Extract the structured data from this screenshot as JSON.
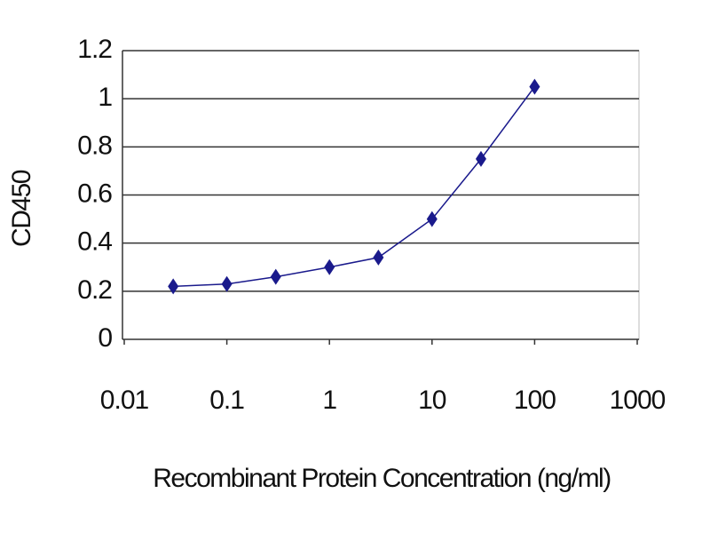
{
  "chart_data": {
    "type": "line",
    "x": [
      0.03,
      0.1,
      0.3,
      1,
      3,
      10,
      30,
      100
    ],
    "series": [
      {
        "name": "CD450",
        "color": "#1a1a8c",
        "values": [
          0.22,
          0.23,
          0.26,
          0.3,
          0.34,
          0.5,
          0.75,
          1.05
        ]
      }
    ],
    "xlabel": "Recombinant Protein Concentration (ng/ml)",
    "ylabel": "CD450",
    "xscale": "log",
    "xlim": [
      0.01,
      1000
    ],
    "xticks": [
      0.01,
      0.1,
      1,
      10,
      100,
      1000
    ],
    "ylim": [
      0,
      1.2
    ],
    "yticks": [
      0,
      0.2,
      0.4,
      0.6,
      0.8,
      1,
      1.2
    ],
    "grid": true
  }
}
